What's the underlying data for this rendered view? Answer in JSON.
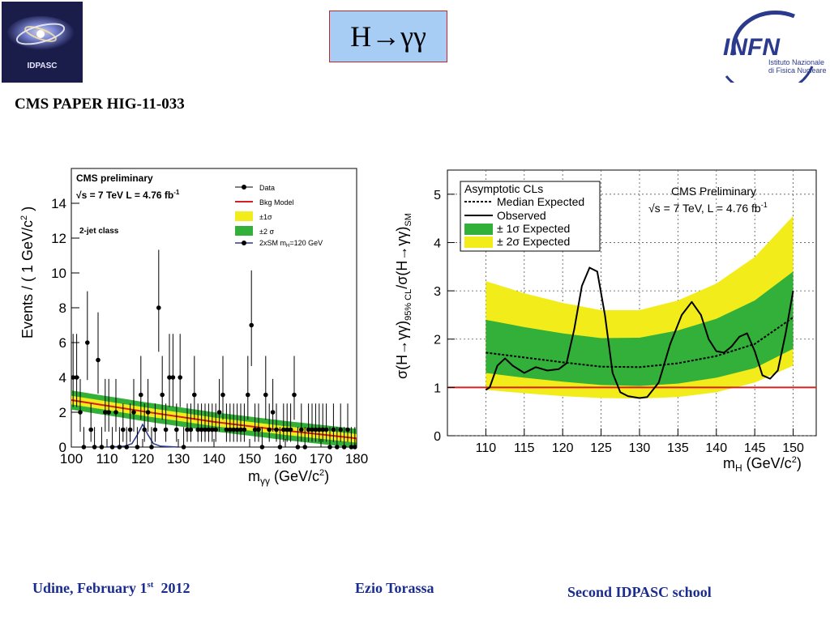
{
  "header": {
    "title": "H→γγ",
    "paper_ref": "CMS PAPER HIG-11-033",
    "logo_left_text": "IDPASC",
    "logo_right_text": "INFN",
    "logo_right_sub1": "Istituto Nazionale",
    "logo_right_sub2": "di Fisica Nucleare"
  },
  "footer": {
    "place_prefix": "Udine, February 1",
    "place_sup": "st",
    "place_year": "  2012",
    "author": "Ezio Torassa",
    "school": "Second  IDPASC school"
  },
  "colors": {
    "title_bg": "#a8cdf5",
    "footer_text": "#1a2d8f",
    "band1": "#33b03a",
    "band2": "#f2ec1a",
    "line_red": "#d42020"
  },
  "chart_data": [
    {
      "type": "scatter",
      "title": "CMS preliminary",
      "subtitle": "√s = 7 TeV L = 4.76 fb",
      "subtitle_sup": "-1",
      "annotation": "2-jet class",
      "xlabel": "m",
      "xlabel_sub": "γγ",
      "xlabel_unit": " (GeV/c",
      "xlabel_unit_sup": "2",
      "xlabel_unit_close": ")",
      "ylabel": "Events / ( 1 GeV/c",
      "ylabel_sup": "2",
      "ylabel_close": " )",
      "xlim": [
        100,
        180
      ],
      "ylim": [
        0,
        16
      ],
      "x_ticks": [
        100,
        110,
        120,
        130,
        140,
        150,
        160,
        170,
        180
      ],
      "y_ticks": [
        0,
        2,
        4,
        6,
        8,
        10,
        12,
        14
      ],
      "legend": [
        "Data",
        "Bkg Model",
        "±1σ",
        "±2 σ",
        "2xSM m"
      ],
      "legend_sub": "H",
      "legend_tail": "=120 GeV",
      "data": [
        [
          100,
          4
        ],
        [
          101,
          4
        ],
        [
          102,
          2
        ],
        [
          103,
          0
        ],
        [
          104,
          6
        ],
        [
          105,
          1
        ],
        [
          106,
          0
        ],
        [
          107,
          5
        ],
        [
          108,
          0
        ],
        [
          109,
          2
        ],
        [
          110,
          2
        ],
        [
          111,
          0
        ],
        [
          112,
          2
        ],
        [
          113,
          0
        ],
        [
          114,
          1
        ],
        [
          115,
          0
        ],
        [
          116,
          1
        ],
        [
          117,
          2
        ],
        [
          118,
          0
        ],
        [
          119,
          3
        ],
        [
          120,
          1
        ],
        [
          121,
          2
        ],
        [
          122,
          0
        ],
        [
          123,
          1
        ],
        [
          124,
          8
        ],
        [
          125,
          3
        ],
        [
          126,
          1
        ],
        [
          127,
          4
        ],
        [
          128,
          4
        ],
        [
          129,
          1
        ],
        [
          130,
          4
        ],
        [
          131,
          0
        ],
        [
          132,
          1
        ],
        [
          133,
          1
        ],
        [
          134,
          3
        ],
        [
          135,
          1
        ],
        [
          136,
          1
        ],
        [
          137,
          1
        ],
        [
          138,
          1
        ],
        [
          139,
          1
        ],
        [
          140,
          1
        ],
        [
          141,
          2
        ],
        [
          142,
          3
        ],
        [
          143,
          1
        ],
        [
          144,
          1
        ],
        [
          145,
          1
        ],
        [
          146,
          1
        ],
        [
          147,
          1
        ],
        [
          148,
          1
        ],
        [
          149,
          3
        ],
        [
          150,
          7
        ],
        [
          151,
          1
        ],
        [
          152,
          1
        ],
        [
          153,
          0
        ],
        [
          154,
          3
        ],
        [
          155,
          1
        ],
        [
          156,
          2
        ],
        [
          157,
          1
        ],
        [
          158,
          0
        ],
        [
          159,
          1
        ],
        [
          160,
          1
        ],
        [
          161,
          1
        ],
        [
          162,
          3
        ],
        [
          163,
          0
        ],
        [
          164,
          1
        ],
        [
          165,
          0
        ],
        [
          166,
          1
        ],
        [
          167,
          1
        ],
        [
          168,
          1
        ],
        [
          169,
          1
        ],
        [
          170,
          1
        ],
        [
          171,
          1
        ],
        [
          172,
          0
        ],
        [
          173,
          1
        ],
        [
          174,
          0
        ],
        [
          175,
          1
        ],
        [
          176,
          0
        ],
        [
          177,
          1
        ],
        [
          178,
          0
        ],
        [
          179,
          0
        ]
      ],
      "bkg_model": [
        [
          100,
          2.7
        ],
        [
          120,
          2.05
        ],
        [
          140,
          1.45
        ],
        [
          160,
          0.95
        ],
        [
          180,
          0.5
        ]
      ],
      "band1_half": 0.25,
      "band2_half": 0.55,
      "signal": [
        [
          110,
          0
        ],
        [
          115,
          0.05
        ],
        [
          117,
          0.2
        ],
        [
          118.5,
          0.7
        ],
        [
          120,
          1.3
        ],
        [
          121.5,
          0.7
        ],
        [
          123,
          0.2
        ],
        [
          125,
          0.05
        ],
        [
          130,
          0
        ]
      ]
    },
    {
      "type": "line",
      "title": "CMS Preliminary",
      "subtitle": "√s = 7 TeV, L = 4.76 fb",
      "subtitle_sup": "-1",
      "legend_title": "Asymptotic CLs",
      "legend": [
        "Median Expected",
        "Observed",
        "± 1σ Expected",
        "± 2σ Expected"
      ],
      "xlabel": "m",
      "xlabel_sub": "H",
      "xlabel_unit": " (GeV/c",
      "xlabel_unit_sup": "2",
      "xlabel_unit_close": ")",
      "ylabel_parts": [
        "σ(H→γγ)",
        "95% CL",
        "/σ(H→γγ)",
        "SM"
      ],
      "xlim": [
        105,
        153
      ],
      "ylim": [
        0,
        5.5
      ],
      "x_ticks": [
        110,
        115,
        120,
        125,
        130,
        135,
        140,
        145,
        150
      ],
      "y_ticks": [
        0,
        1,
        2,
        3,
        4,
        5
      ],
      "median": [
        [
          110,
          1.72
        ],
        [
          115,
          1.62
        ],
        [
          120,
          1.52
        ],
        [
          125,
          1.43
        ],
        [
          130,
          1.42
        ],
        [
          135,
          1.5
        ],
        [
          140,
          1.65
        ],
        [
          145,
          1.9
        ],
        [
          150,
          2.45
        ]
      ],
      "band1": [
        [
          110,
          1.3,
          2.4
        ],
        [
          115,
          1.2,
          2.25
        ],
        [
          120,
          1.12,
          2.12
        ],
        [
          125,
          1.05,
          2.02
        ],
        [
          130,
          1.03,
          2.03
        ],
        [
          135,
          1.08,
          2.18
        ],
        [
          140,
          1.2,
          2.42
        ],
        [
          145,
          1.4,
          2.8
        ],
        [
          150,
          1.8,
          3.4
        ]
      ],
      "band2": [
        [
          110,
          0.95,
          3.2
        ],
        [
          115,
          0.88,
          2.95
        ],
        [
          120,
          0.82,
          2.75
        ],
        [
          125,
          0.78,
          2.6
        ],
        [
          130,
          0.77,
          2.6
        ],
        [
          135,
          0.8,
          2.8
        ],
        [
          140,
          0.9,
          3.15
        ],
        [
          145,
          1.1,
          3.7
        ],
        [
          150,
          1.45,
          4.55
        ]
      ],
      "observed": [
        [
          110,
          0.95
        ],
        [
          110.5,
          1.0
        ],
        [
          111.5,
          1.45
        ],
        [
          112.5,
          1.6
        ],
        [
          113.5,
          1.45
        ],
        [
          115,
          1.3
        ],
        [
          116.5,
          1.42
        ],
        [
          118,
          1.35
        ],
        [
          119.5,
          1.38
        ],
        [
          120.5,
          1.5
        ],
        [
          121.5,
          2.2
        ],
        [
          122.5,
          3.1
        ],
        [
          123.5,
          3.48
        ],
        [
          124.5,
          3.4
        ],
        [
          125.5,
          2.5
        ],
        [
          126.5,
          1.3
        ],
        [
          127.5,
          0.9
        ],
        [
          128.5,
          0.82
        ],
        [
          130,
          0.78
        ],
        [
          131,
          0.8
        ],
        [
          132.5,
          1.1
        ],
        [
          134,
          1.9
        ],
        [
          135.5,
          2.5
        ],
        [
          136.8,
          2.77
        ],
        [
          138,
          2.5
        ],
        [
          139,
          2.0
        ],
        [
          140,
          1.75
        ],
        [
          141,
          1.72
        ],
        [
          142,
          1.85
        ],
        [
          143,
          2.05
        ],
        [
          144,
          2.12
        ],
        [
          145,
          1.75
        ],
        [
          146,
          1.25
        ],
        [
          147,
          1.18
        ],
        [
          148,
          1.35
        ],
        [
          149,
          2.1
        ],
        [
          150,
          3.0
        ]
      ],
      "sm_line": 1
    }
  ]
}
